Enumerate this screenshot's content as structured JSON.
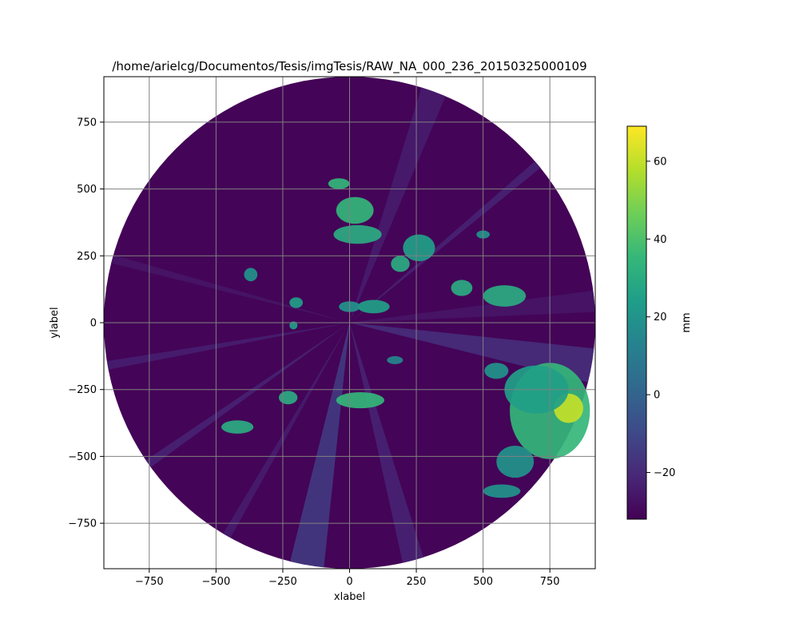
{
  "chart_data": {
    "type": "heatmap",
    "title": "/home/arielcg/Documentos/Tesis/imgTesis/RAW_NA_000_236_20150325000109",
    "xlabel": "xlabel",
    "ylabel": "ylabel",
    "xlim": [
      -920,
      920
    ],
    "ylim": [
      -920,
      920
    ],
    "xticks": [
      -750,
      -500,
      -250,
      0,
      250,
      500,
      750
    ],
    "yticks": [
      -750,
      -500,
      -250,
      0,
      250,
      500,
      750
    ],
    "grid": true,
    "grid_color": "#808080",
    "radar_range": 920,
    "colorbar": {
      "label": "mm",
      "range": [
        -32,
        69
      ],
      "ticks": [
        -20,
        0,
        20,
        40,
        60
      ],
      "colormap": "viridis",
      "colormap_stops": [
        "#440154",
        "#482878",
        "#3e4a89",
        "#31688e",
        "#26828e",
        "#1f9e89",
        "#35b779",
        "#6ece58",
        "#b5de2b",
        "#fde725"
      ]
    },
    "background_value": -31,
    "beams": [
      {
        "angle_deg": -10,
        "width_deg": 8,
        "value": -18
      },
      {
        "angle_deg": 5,
        "width_deg": 5,
        "value": -26
      },
      {
        "angle_deg": 40,
        "width_deg": 2,
        "value": -22
      },
      {
        "angle_deg": 70,
        "width_deg": 6,
        "value": -24
      },
      {
        "angle_deg": 165,
        "width_deg": 2,
        "value": -26
      },
      {
        "angle_deg": 190,
        "width_deg": 2,
        "value": -23
      },
      {
        "angle_deg": 215,
        "width_deg": 2,
        "value": -22
      },
      {
        "angle_deg": 240,
        "width_deg": 2,
        "value": -24
      },
      {
        "angle_deg": 260,
        "width_deg": 8,
        "value": -14
      },
      {
        "angle_deg": 285,
        "width_deg": 5,
        "value": -22
      }
    ],
    "cells": [
      {
        "x": 750,
        "y": -330,
        "rx": 150,
        "ry": 180,
        "value": 35
      },
      {
        "x": 820,
        "y": -320,
        "rx": 55,
        "ry": 55,
        "value": 60
      },
      {
        "x": 700,
        "y": -250,
        "rx": 120,
        "ry": 90,
        "value": 25
      },
      {
        "x": 620,
        "y": -520,
        "rx": 70,
        "ry": 60,
        "value": 20
      },
      {
        "x": 570,
        "y": -630,
        "rx": 70,
        "ry": 25,
        "value": 20
      },
      {
        "x": 550,
        "y": -180,
        "rx": 45,
        "ry": 30,
        "value": 20
      },
      {
        "x": 580,
        "y": 100,
        "rx": 80,
        "ry": 40,
        "value": 30
      },
      {
        "x": 420,
        "y": 130,
        "rx": 40,
        "ry": 30,
        "value": 30
      },
      {
        "x": 260,
        "y": 280,
        "rx": 60,
        "ry": 50,
        "value": 25
      },
      {
        "x": 190,
        "y": 220,
        "rx": 35,
        "ry": 30,
        "value": 30
      },
      {
        "x": 20,
        "y": 420,
        "rx": 70,
        "ry": 50,
        "value": 35
      },
      {
        "x": 30,
        "y": 330,
        "rx": 90,
        "ry": 35,
        "value": 30
      },
      {
        "x": -40,
        "y": 520,
        "rx": 40,
        "ry": 20,
        "value": 35
      },
      {
        "x": 90,
        "y": 60,
        "rx": 60,
        "ry": 25,
        "value": 25
      },
      {
        "x": 0,
        "y": 60,
        "rx": 40,
        "ry": 20,
        "value": 20
      },
      {
        "x": 40,
        "y": -290,
        "rx": 90,
        "ry": 30,
        "value": 35
      },
      {
        "x": -230,
        "y": -280,
        "rx": 35,
        "ry": 25,
        "value": 30
      },
      {
        "x": -420,
        "y": -390,
        "rx": 60,
        "ry": 25,
        "value": 30
      },
      {
        "x": -200,
        "y": 75,
        "rx": 25,
        "ry": 20,
        "value": 25
      },
      {
        "x": -370,
        "y": 180,
        "rx": 25,
        "ry": 25,
        "value": 20
      },
      {
        "x": -210,
        "y": -10,
        "rx": 15,
        "ry": 15,
        "value": 25
      },
      {
        "x": 170,
        "y": -140,
        "rx": 30,
        "ry": 15,
        "value": 15
      },
      {
        "x": 500,
        "y": 330,
        "rx": 25,
        "ry": 15,
        "value": 20
      }
    ]
  }
}
